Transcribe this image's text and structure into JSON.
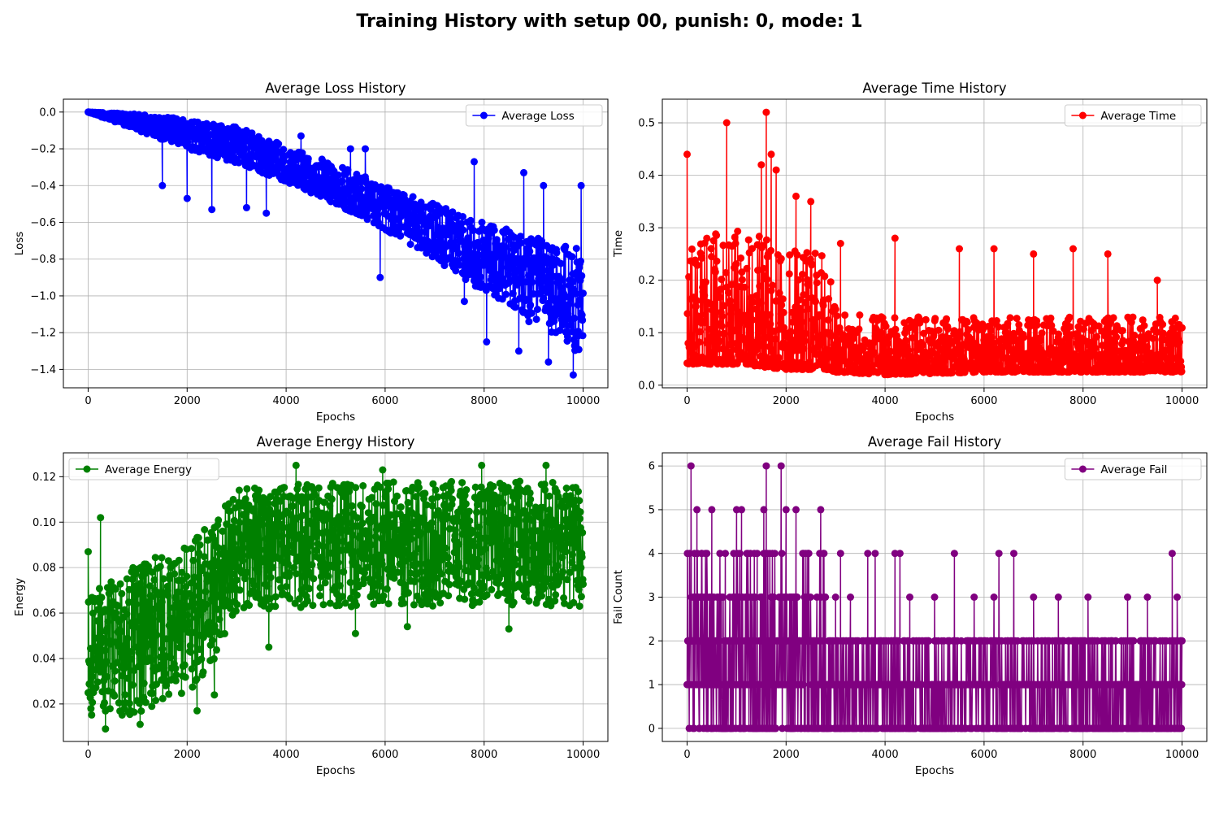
{
  "figure": {
    "title": "Training History with setup 00, punish: 0, mode: 1"
  },
  "chart_data": [
    {
      "type": "line",
      "title": "Average Loss History",
      "xlabel": "Epochs",
      "ylabel": "Loss",
      "xlim": [
        -500,
        10500
      ],
      "ylim": [
        -1.5,
        0.07
      ],
      "xticks": [
        0,
        2000,
        4000,
        6000,
        8000,
        10000
      ],
      "yticks": [
        0.0,
        -0.2,
        -0.4,
        -0.6,
        -0.8,
        -1.0,
        -1.2,
        -1.4
      ],
      "ytick_labels": [
        "0.0",
        "−0.2",
        "−0.4",
        "−0.6",
        "−0.8",
        "−1.0",
        "−1.2",
        "−1.4"
      ],
      "grid": true,
      "legend_position": "top-right",
      "color": "#0000ff",
      "series": [
        {
          "name": "Average Loss",
          "points": 10000,
          "x_range": [
            0,
            10000
          ],
          "trend_x": [
            0,
            1000,
            2000,
            3000,
            4000,
            5000,
            6000,
            7000,
            8000,
            9000,
            10000
          ],
          "trend_upper": [
            0.0,
            -0.01,
            -0.04,
            -0.08,
            -0.18,
            -0.28,
            -0.4,
            -0.5,
            -0.6,
            -0.68,
            -0.75
          ],
          "trend_lower": [
            0.0,
            -0.1,
            -0.2,
            -0.28,
            -0.38,
            -0.5,
            -0.64,
            -0.8,
            -0.98,
            -1.16,
            -1.35
          ],
          "outliers_min": [
            [
              1500,
              -0.4
            ],
            [
              2000,
              -0.47
            ],
            [
              2500,
              -0.53
            ],
            [
              3200,
              -0.52
            ],
            [
              3600,
              -0.55
            ],
            [
              5900,
              -0.9
            ],
            [
              7600,
              -1.03
            ],
            [
              8050,
              -1.25
            ],
            [
              8700,
              -1.3
            ],
            [
              9300,
              -1.36
            ],
            [
              9800,
              -1.43
            ]
          ],
          "outliers_max": [
            [
              4300,
              -0.13
            ],
            [
              5300,
              -0.2
            ],
            [
              5600,
              -0.2
            ],
            [
              7800,
              -0.27
            ],
            [
              8800,
              -0.33
            ],
            [
              9200,
              -0.4
            ],
            [
              9960,
              -0.4
            ]
          ]
        }
      ]
    },
    {
      "type": "line",
      "title": "Average Time History",
      "xlabel": "Epochs",
      "ylabel": "Time",
      "xlim": [
        -500,
        10500
      ],
      "ylim": [
        -0.005,
        0.545
      ],
      "xticks": [
        0,
        2000,
        4000,
        6000,
        8000,
        10000
      ],
      "yticks": [
        0.0,
        0.1,
        0.2,
        0.3,
        0.4,
        0.5
      ],
      "ytick_labels": [
        "0.0",
        "0.1",
        "0.2",
        "0.3",
        "0.4",
        "0.5"
      ],
      "grid": true,
      "legend_position": "top-right",
      "color": "#ff0000",
      "series": [
        {
          "name": "Average Time",
          "points": 10000,
          "x_range": [
            0,
            10000
          ],
          "trend_x": [
            0,
            1000,
            2000,
            2800,
            3000,
            4000,
            6000,
            8000,
            10000
          ],
          "trend_upper": [
            0.3,
            0.3,
            0.27,
            0.25,
            0.15,
            0.13,
            0.13,
            0.13,
            0.13
          ],
          "trend_lower": [
            0.04,
            0.04,
            0.03,
            0.03,
            0.025,
            0.02,
            0.025,
            0.025,
            0.025
          ],
          "outliers_max": [
            [
              0,
              0.44
            ],
            [
              800,
              0.5
            ],
            [
              1500,
              0.42
            ],
            [
              1600,
              0.52
            ],
            [
              1700,
              0.44
            ],
            [
              1800,
              0.41
            ],
            [
              2200,
              0.36
            ],
            [
              2500,
              0.35
            ],
            [
              3100,
              0.27
            ],
            [
              4200,
              0.28
            ],
            [
              5500,
              0.26
            ],
            [
              6200,
              0.26
            ],
            [
              7000,
              0.25
            ],
            [
              7800,
              0.26
            ],
            [
              8500,
              0.25
            ],
            [
              9500,
              0.2
            ]
          ],
          "outliers_min": []
        }
      ]
    },
    {
      "type": "line",
      "title": "Average Energy History",
      "xlabel": "Epochs",
      "ylabel": "Energy",
      "xlim": [
        -500,
        10500
      ],
      "ylim": [
        0.0035,
        0.1305
      ],
      "xticks": [
        0,
        2000,
        4000,
        6000,
        8000,
        10000
      ],
      "yticks": [
        0.02,
        0.04,
        0.06,
        0.08,
        0.1,
        0.12
      ],
      "ytick_labels": [
        "0.02",
        "0.04",
        "0.06",
        "0.08",
        "0.10",
        "0.12"
      ],
      "grid": true,
      "legend_position": "top-left",
      "color": "#008000",
      "series": [
        {
          "name": "Average Energy",
          "points": 10000,
          "x_range": [
            0,
            10000
          ],
          "trend_x": [
            0,
            1000,
            2000,
            2500,
            3000,
            4000,
            6000,
            8000,
            10000
          ],
          "trend_upper": [
            0.07,
            0.082,
            0.09,
            0.1,
            0.115,
            0.117,
            0.118,
            0.118,
            0.118
          ],
          "trend_lower": [
            0.015,
            0.015,
            0.025,
            0.035,
            0.06,
            0.062,
            0.063,
            0.063,
            0.063
          ],
          "outliers_max": [
            [
              0,
              0.087
            ],
            [
              250,
              0.102
            ],
            [
              4200,
              0.125
            ],
            [
              7950,
              0.125
            ],
            [
              9250,
              0.125
            ],
            [
              5950,
              0.123
            ]
          ],
          "outliers_min": [
            [
              350,
              0.009
            ],
            [
              1050,
              0.011
            ],
            [
              2200,
              0.017
            ],
            [
              2550,
              0.024
            ],
            [
              3650,
              0.045
            ],
            [
              5400,
              0.051
            ],
            [
              6450,
              0.054
            ],
            [
              8500,
              0.053
            ]
          ]
        }
      ]
    },
    {
      "type": "line",
      "title": "Average Fail History",
      "xlabel": "Epochs",
      "ylabel": "Fail Count",
      "xlim": [
        -500,
        10500
      ],
      "ylim": [
        -0.3,
        6.3
      ],
      "xticks": [
        0,
        2000,
        4000,
        6000,
        8000,
        10000
      ],
      "yticks": [
        0,
        1,
        2,
        3,
        4,
        5,
        6
      ],
      "ytick_labels": [
        "0",
        "1",
        "2",
        "3",
        "4",
        "5",
        "6"
      ],
      "grid": true,
      "legend_position": "top-right",
      "color": "#800080",
      "series": [
        {
          "name": "Average Fail",
          "points": 10000,
          "x_range": [
            0,
            10000
          ],
          "levels": [
            0,
            1,
            2,
            3,
            4,
            5,
            6
          ],
          "phase_change_x": 2800,
          "max_level_before": 5,
          "max_level_after": 2,
          "spikes": [
            [
              80,
              6
            ],
            [
              1600,
              6
            ],
            [
              1900,
              6
            ],
            [
              200,
              5
            ],
            [
              500,
              5
            ],
            [
              1000,
              5
            ],
            [
              1100,
              5
            ],
            [
              1550,
              5
            ],
            [
              2000,
              5
            ],
            [
              2200,
              5
            ],
            [
              2700,
              5
            ],
            [
              2750,
              4
            ],
            [
              3100,
              4
            ],
            [
              3650,
              4
            ],
            [
              3800,
              4
            ],
            [
              4200,
              4
            ],
            [
              4300,
              4
            ],
            [
              5400,
              4
            ],
            [
              6300,
              4
            ],
            [
              6600,
              4
            ],
            [
              9800,
              4
            ],
            [
              3000,
              3
            ],
            [
              3300,
              3
            ],
            [
              4500,
              3
            ],
            [
              5000,
              3
            ],
            [
              5800,
              3
            ],
            [
              6200,
              3
            ],
            [
              7000,
              3
            ],
            [
              7500,
              3
            ],
            [
              8100,
              3
            ],
            [
              8900,
              3
            ],
            [
              9300,
              3
            ],
            [
              9900,
              3
            ]
          ]
        }
      ]
    }
  ]
}
